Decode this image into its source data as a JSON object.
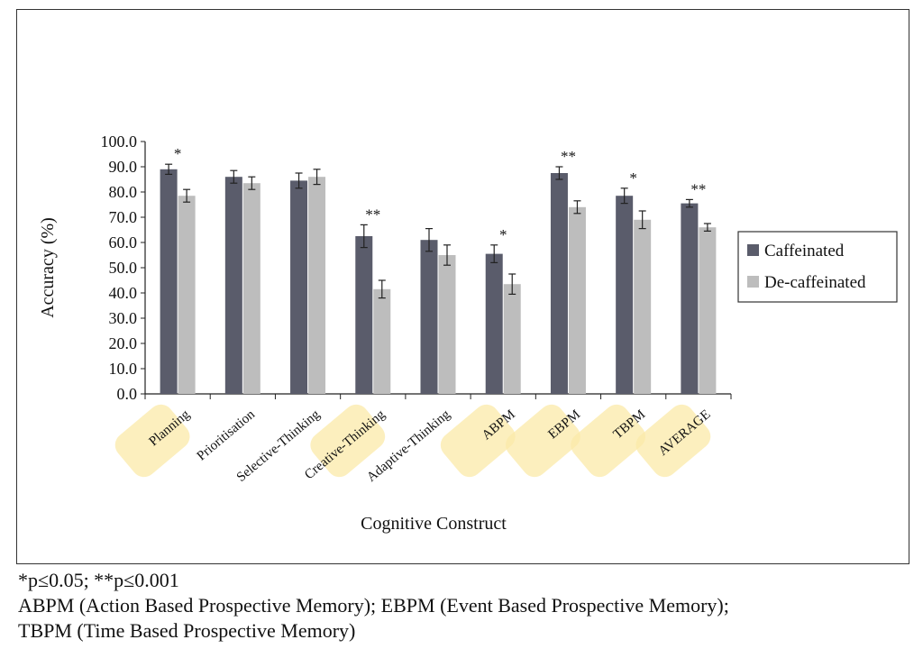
{
  "chart_data": {
    "type": "bar",
    "title": "",
    "xlabel": "Cognitive Construct",
    "ylabel": "Accuracy (%)",
    "ylim": [
      0,
      100
    ],
    "yticks": [
      "0.0",
      "10.0",
      "20.0",
      "30.0",
      "40.0",
      "50.0",
      "60.0",
      "70.0",
      "80.0",
      "90.0",
      "100.0"
    ],
    "grid": false,
    "legend_position": "right",
    "categories": [
      "Planning",
      "Prioritisation",
      "Selective-Thinking",
      "Creative-Thinking",
      "Adaptive-Thinking",
      "ABPM",
      "EBPM",
      "TBPM",
      "AVERAGE"
    ],
    "series": [
      {
        "name": "Caffeinated",
        "color": "#5a5c6b",
        "values": [
          89,
          86,
          84.5,
          62.5,
          61,
          55.5,
          87.5,
          78.5,
          75.5
        ],
        "errors": [
          2,
          2.5,
          3,
          4.5,
          4.5,
          3.5,
          2.5,
          3,
          1.5
        ]
      },
      {
        "name": "De-caffeinated",
        "color": "#bdbdbd",
        "values": [
          78.5,
          83.5,
          86,
          41.5,
          55,
          43.5,
          74,
          69,
          66
        ],
        "errors": [
          2.5,
          2.5,
          3,
          3.5,
          4,
          4,
          2.5,
          3.5,
          1.5
        ]
      }
    ],
    "significance": [
      "*",
      "",
      "",
      "**",
      "",
      "*",
      "**",
      "*",
      "**"
    ],
    "highlighted_categories": [
      "Planning",
      "Creative-Thinking",
      "ABPM",
      "EBPM",
      "TBPM",
      "AVERAGE"
    ],
    "highlight_color": "#fbe9a8"
  },
  "notes": {
    "significance": "*p≤0.05; **p≤0.001",
    "abbrev_line1": "ABPM (Action Based Prospective Memory); EBPM (Event Based Prospective Memory);",
    "abbrev_line2": "TBPM (Time Based Prospective Memory)"
  }
}
